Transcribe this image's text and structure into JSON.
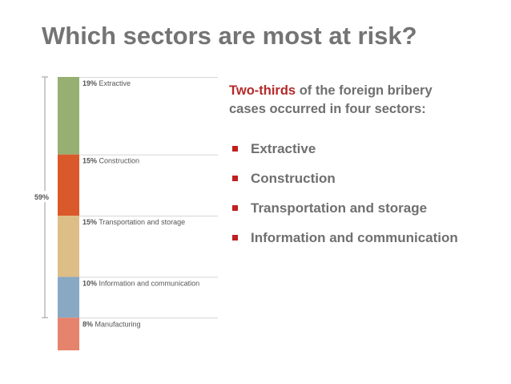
{
  "slide": {
    "title": "Which sectors are most at risk?",
    "intro_highlight": "Two-thirds",
    "intro_rest": " of the foreign bribery cases occurred in four sectors:",
    "bullets": [
      "Extractive",
      "Construction",
      "Transportation and storage",
      "Information and communication"
    ],
    "colors": {
      "highlight": "#b52a2a",
      "bullet": "#c0201f",
      "text": "#6f6f6f",
      "title": "#747474"
    }
  },
  "chart_data": {
    "type": "bar",
    "orientation": "stacked-vertical",
    "categories": [
      "Extractive",
      "Construction",
      "Transportation and storage",
      "Information and communication",
      "Manufacturing"
    ],
    "values": [
      19,
      15,
      15,
      10,
      8
    ],
    "value_labels": [
      "19%",
      "15%",
      "15%",
      "10%",
      "8%"
    ],
    "colors": [
      "#97b072",
      "#d9592b",
      "#ddbe86",
      "#88a8c4",
      "#e6836c"
    ],
    "bracket_label": "59%",
    "bracket_covers": [
      "Extractive",
      "Construction",
      "Transportation and storage",
      "Information and communication"
    ],
    "unit": "%"
  }
}
